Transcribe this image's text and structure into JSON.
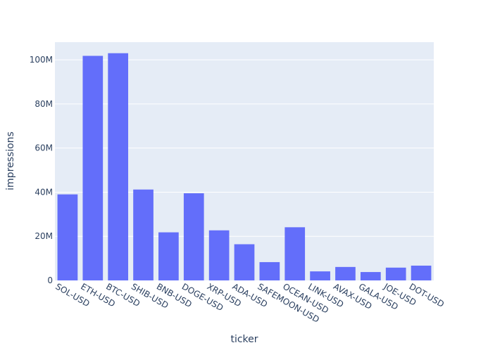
{
  "chart_data": {
    "type": "bar",
    "title": "",
    "xlabel": "ticker",
    "ylabel": "impressions",
    "categories": [
      "SOL-USD",
      "ETH-USD",
      "BTC-USD",
      "SHIB-USD",
      "BNB-USD",
      "DOGE-USD",
      "XRP-USD",
      "ADA-USD",
      "SAFEMOON-USD",
      "OCEAN-USD",
      "LINK-USD",
      "AVAX-USD",
      "GALA-USD",
      "JOE-USD",
      "DOT-USD"
    ],
    "values": [
      39000000,
      101800000,
      103000000,
      41200000,
      21800000,
      39500000,
      22700000,
      16400000,
      8300000,
      24100000,
      4100000,
      6100000,
      3800000,
      5800000,
      6700000
    ],
    "ylim": [
      0,
      108000000
    ],
    "yticks": [
      0,
      20000000,
      40000000,
      60000000,
      80000000,
      100000000
    ],
    "ytick_labels": [
      "0",
      "20M",
      "40M",
      "60M",
      "80M",
      "100M"
    ],
    "grid": true,
    "colors": {
      "bar": "#636efa",
      "plot_bg": "#e5ecf6",
      "grid": "#ffffff",
      "text": "#2a3f5f"
    }
  }
}
